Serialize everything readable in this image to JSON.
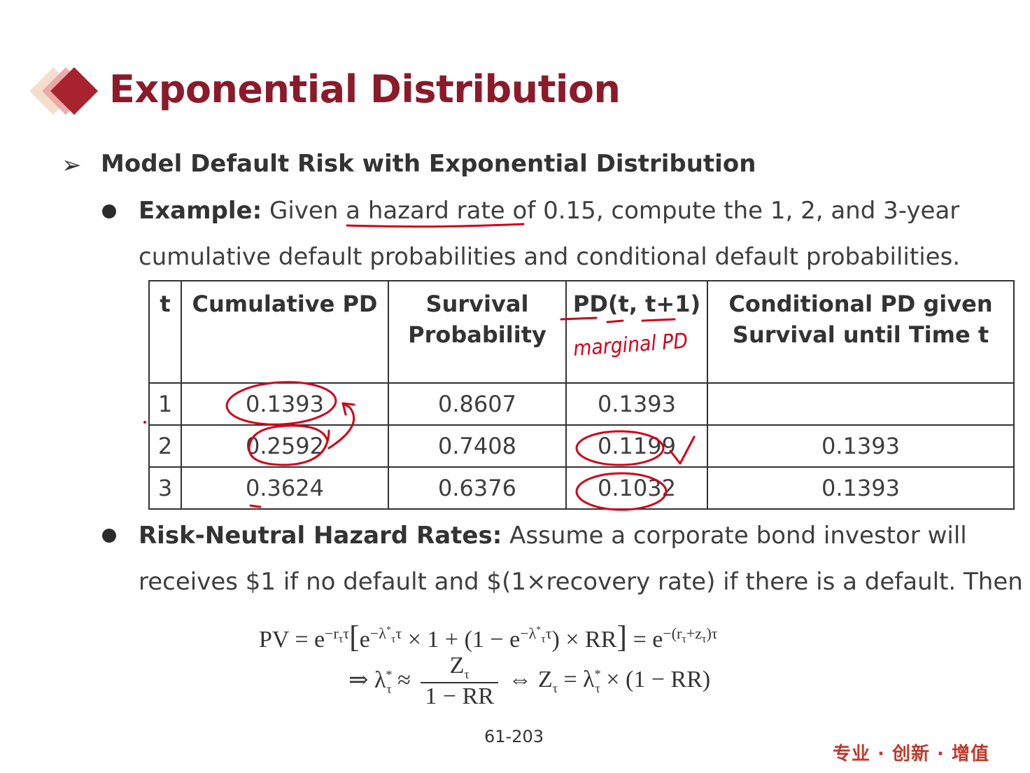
{
  "slide": {
    "title": "Exponential Distribution",
    "subtitle": "Model Default Risk with Exponential Distribution",
    "example_label": "Example:",
    "example_line1": " Given a hazard rate of 0.15, compute the 1, 2, and 3-year",
    "example_line2": "cumulative default probabilities and conditional default probabilities.",
    "rn_label": "Risk-Neutral Hazard Rates:",
    "rn_line1": " Assume a corporate bond investor will",
    "rn_line2": "receives $1 if no default and $(1×recovery rate) if there is a default. Then",
    "page_number": "61-203",
    "slogan": "专业 · 创新 · 增值"
  },
  "table": {
    "headers": [
      "t",
      "Cumulative PD",
      "Survival Probability",
      "PD(t, t+1)",
      "Conditional PD given Survival until Time t"
    ],
    "rows": [
      [
        "1",
        "0.1393",
        "0.8607",
        "0.1393",
        ""
      ],
      [
        "2",
        "0.2592",
        "0.7408",
        "0.1199",
        "0.1393"
      ],
      [
        "3",
        "0.3624",
        "0.6376",
        "0.1032",
        "0.1393"
      ]
    ]
  },
  "annotations": {
    "handwritten_note": "marginal PD"
  },
  "colors": {
    "title": "#8b1a2a",
    "ink": "#d0021b",
    "slogan": "#c0392b"
  }
}
